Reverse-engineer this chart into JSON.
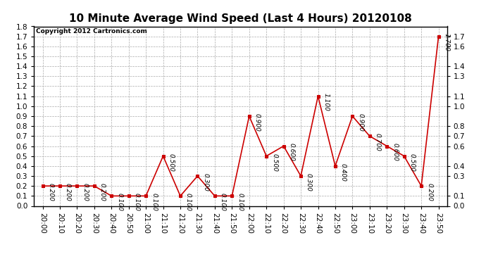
{
  "title": "10 Minute Average Wind Speed (Last 4 Hours) 20120108",
  "copyright": "Copyright 2012 Cartronics.com",
  "x_labels": [
    "20:00",
    "20:10",
    "20:20",
    "20:30",
    "20:40",
    "20:50",
    "21:00",
    "21:10",
    "21:20",
    "21:30",
    "21:40",
    "21:50",
    "22:00",
    "22:10",
    "22:20",
    "22:30",
    "22:40",
    "22:50",
    "23:00",
    "23:10",
    "23:20",
    "23:30",
    "23:40",
    "23:50"
  ],
  "y_values": [
    0.2,
    0.2,
    0.2,
    0.2,
    0.1,
    0.1,
    0.1,
    0.5,
    0.1,
    0.3,
    0.1,
    0.1,
    0.9,
    0.5,
    0.6,
    0.3,
    1.1,
    0.4,
    0.9,
    0.7,
    0.6,
    0.5,
    0.2,
    1.7
  ],
  "line_color": "#cc0000",
  "marker_color": "#cc0000",
  "bg_color": "#ffffff",
  "plot_bg_color": "#ffffff",
  "grid_color": "#aaaaaa",
  "title_fontsize": 11,
  "label_fontsize": 6.5,
  "tick_fontsize": 7.5,
  "copyright_fontsize": 6.5,
  "ylim": [
    0.0,
    1.8
  ],
  "yticks_left": [
    0.0,
    0.1,
    0.2,
    0.3,
    0.4,
    0.5,
    0.6,
    0.7,
    0.8,
    0.9,
    1.0,
    1.1,
    1.2,
    1.3,
    1.4,
    1.5,
    1.6,
    1.7,
    1.8
  ],
  "yticks_right": [
    0.0,
    0.1,
    0.3,
    0.4,
    0.6,
    0.7,
    0.8,
    1.0,
    1.1,
    1.3,
    1.4,
    1.6,
    1.7
  ]
}
